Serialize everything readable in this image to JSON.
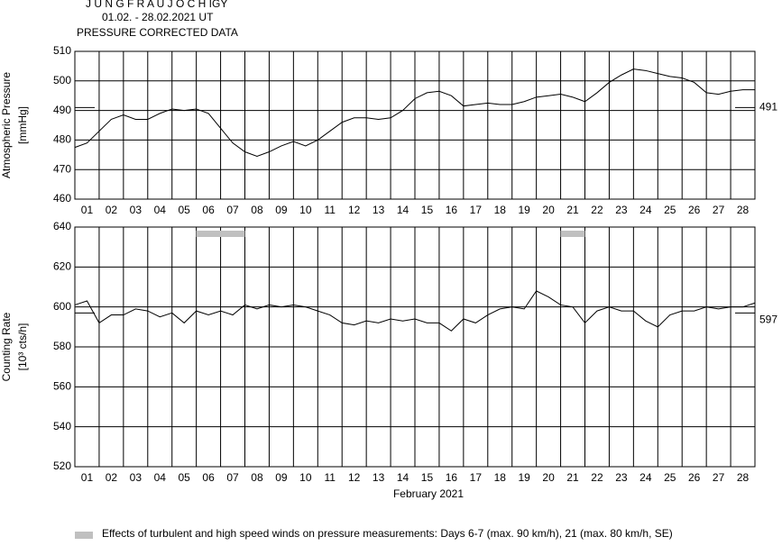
{
  "chart_data": [
    {
      "type": "line",
      "title": "J U N G F R A U J O C H  IGY",
      "subtitle": "01.02. - 28.02.2021  UT",
      "subtitle2": "PRESSURE CORRECTED DATA",
      "ylabel": [
        "Atmospheric Pressure",
        "[mmHg]"
      ],
      "categories": [
        "01",
        "02",
        "03",
        "04",
        "05",
        "06",
        "07",
        "08",
        "09",
        "10",
        "11",
        "12",
        "13",
        "14",
        "15",
        "16",
        "17",
        "18",
        "19",
        "20",
        "21",
        "22",
        "23",
        "24",
        "25",
        "26",
        "27",
        "28"
      ],
      "xlim": [
        0,
        28
      ],
      "x": [
        0,
        0.5,
        1,
        1.5,
        2,
        2.5,
        3,
        3.5,
        4,
        4.5,
        5,
        5.5,
        6,
        6.5,
        7,
        7.5,
        8,
        8.5,
        9,
        9.5,
        10,
        10.5,
        11,
        11.5,
        12,
        12.5,
        13,
        13.5,
        14,
        14.5,
        15,
        15.5,
        16,
        16.5,
        17,
        17.5,
        18,
        18.5,
        19,
        19.5,
        20,
        20.5,
        21,
        21.5,
        22,
        22.5,
        23,
        23.5,
        24,
        24.5,
        25,
        25.5,
        26,
        26.5,
        27,
        27.5,
        28
      ],
      "values": [
        477.5,
        479,
        483,
        487,
        488.5,
        487,
        487,
        489,
        490.5,
        490,
        490.5,
        489,
        484,
        479,
        476,
        474.5,
        476,
        478,
        479.5,
        478,
        480,
        483,
        486,
        487.5,
        487.5,
        487,
        487.5,
        490,
        494,
        496,
        496.5,
        495,
        491.5,
        492,
        492.5,
        492,
        492,
        493,
        494.5,
        495,
        495.5,
        494.5,
        493,
        496,
        499.5,
        502,
        504,
        503.5,
        502.5,
        501.5,
        501,
        499.5,
        496,
        495.5,
        496.5,
        497,
        497
      ],
      "color": "#000000",
      "reference": 491,
      "ylim": [
        460,
        510
      ],
      "yticks": [
        460,
        470,
        480,
        490,
        500,
        510
      ],
      "grid": true
    },
    {
      "type": "line",
      "ylabel": [
        "Counting Rate",
        "[10³ cts/h]"
      ],
      "xlabel": "February 2021",
      "categories": [
        "01",
        "02",
        "03",
        "04",
        "05",
        "06",
        "07",
        "08",
        "09",
        "10",
        "11",
        "12",
        "13",
        "14",
        "15",
        "16",
        "17",
        "18",
        "19",
        "20",
        "21",
        "22",
        "23",
        "24",
        "25",
        "26",
        "27",
        "28"
      ],
      "xlim": [
        0,
        28
      ],
      "x": [
        0,
        0.5,
        1,
        1.5,
        2,
        2.5,
        3,
        3.5,
        4,
        4.5,
        5,
        5.5,
        6,
        6.5,
        7,
        7.5,
        8,
        8.5,
        9,
        9.5,
        10,
        10.5,
        11,
        11.5,
        12,
        12.5,
        13,
        13.5,
        14,
        14.5,
        15,
        15.5,
        16,
        16.5,
        17,
        17.5,
        18,
        18.5,
        19,
        19.5,
        20,
        20.5,
        21,
        21.5,
        22,
        22.5,
        23,
        23.5,
        24,
        24.5,
        25,
        25.5,
        26,
        26.5,
        27,
        27.5,
        28
      ],
      "values": [
        601,
        603,
        592,
        596,
        596,
        599,
        598,
        595,
        597,
        592,
        598,
        596,
        598,
        596,
        601,
        599,
        601,
        600,
        601,
        600,
        598,
        596,
        592,
        591,
        593,
        592,
        594,
        593,
        594,
        592,
        592,
        588,
        594,
        592,
        596,
        599,
        600,
        599,
        608,
        605,
        601,
        600,
        592,
        598,
        600,
        598,
        598,
        593,
        590,
        596,
        598,
        598,
        600,
        599,
        600,
        600,
        602
      ],
      "color": "#000000",
      "reference": 597,
      "highlight_spans": [
        [
          5,
          7
        ],
        [
          20,
          21
        ]
      ],
      "highlight_color": "#c0c0c0",
      "ylim": [
        520,
        640
      ],
      "yticks": [
        520,
        540,
        560,
        580,
        600,
        620,
        640
      ],
      "grid": true,
      "legend_text": "Effects of turbulent and high speed winds on pressure measurements: Days 6-7 (max. 90 km/h), 21 (max. 80 km/h, SE)"
    }
  ]
}
